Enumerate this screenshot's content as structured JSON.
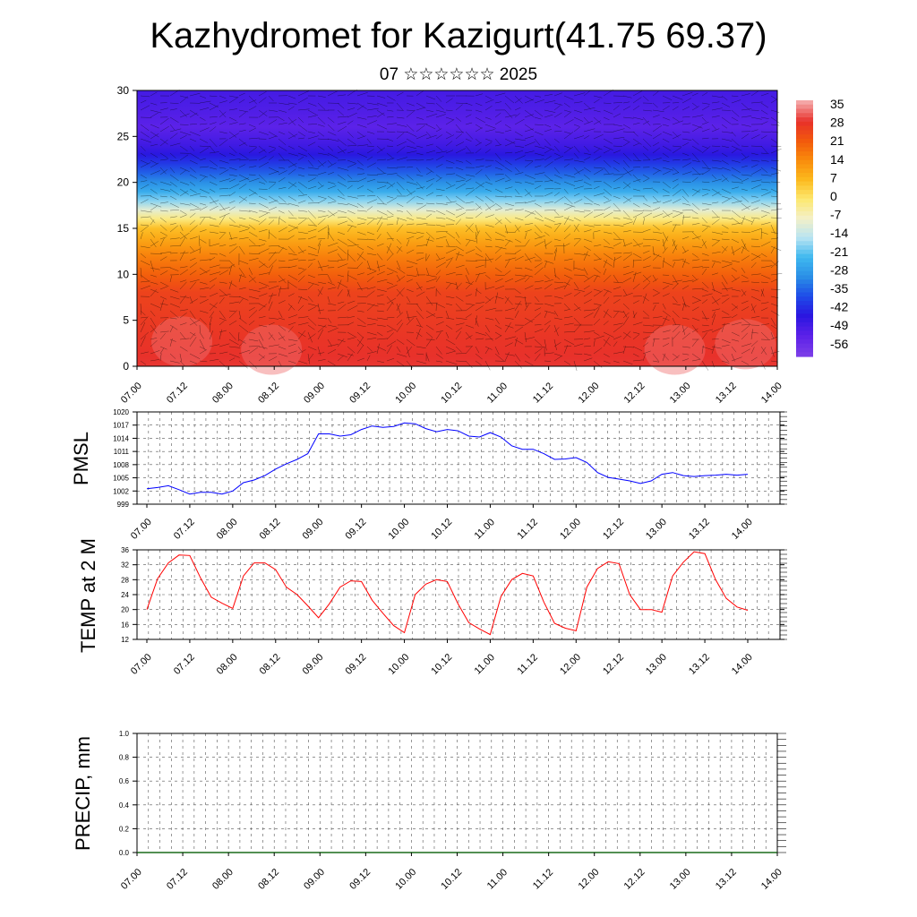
{
  "header": {
    "title": "Kazhydromet for Kazigurt(41.75 69.37)",
    "subtitle": "07 ☆☆☆☆☆☆ 2025"
  },
  "time_ticks": [
    "07.00",
    "07.12",
    "08.00",
    "08.12",
    "09.00",
    "09.12",
    "10.00",
    "10.12",
    "11.00",
    "11.12",
    "12.00",
    "12.12",
    "13.00",
    "13.12",
    "14.00"
  ],
  "chart_data": [
    {
      "type": "heatmap",
      "name": "temperature-wind-cross-section",
      "x": [
        "07.00",
        "07.12",
        "08.00",
        "08.12",
        "09.00",
        "09.12",
        "10.00",
        "10.12",
        "11.00",
        "11.12",
        "12.00",
        "12.12",
        "13.00",
        "13.12",
        "14.00"
      ],
      "ylim": [
        0,
        30
      ],
      "yticks": [
        0,
        5,
        10,
        15,
        20,
        25,
        30
      ],
      "colorbar": {
        "labels": [
          "35",
          "28",
          "21",
          "14",
          "7",
          "0",
          "-7",
          "-14",
          "-21",
          "-28",
          "-35",
          "-42",
          "-49",
          "-56"
        ],
        "colors": [
          "#f4a5a5",
          "#e8302a",
          "#f25a0c",
          "#f98c0c",
          "#fcba1e",
          "#fde870",
          "#f3f0c8",
          "#b8e4f2",
          "#3fb8ef",
          "#2a8fe6",
          "#1e4ce8",
          "#2a16e0",
          "#5a20e8",
          "#7a3ce8"
        ]
      },
      "profile": [
        {
          "y": 0,
          "t": 28
        },
        {
          "y": 8,
          "t": 24
        },
        {
          "y": 12,
          "t": 14
        },
        {
          "y": 15,
          "t": 4
        },
        {
          "y": 16.5,
          "t": -8
        },
        {
          "y": 18.5,
          "t": -25
        },
        {
          "y": 21,
          "t": -38
        },
        {
          "y": 23.5,
          "t": -50
        },
        {
          "y": 26,
          "t": -56
        },
        {
          "y": 27.5,
          "t": -54
        },
        {
          "y": 30,
          "t": -52
        }
      ],
      "xlabel": "",
      "ylabel": "",
      "grid": false
    },
    {
      "type": "line",
      "name": "pmsl",
      "ylabel": "PMSL",
      "ylim": [
        999,
        1020
      ],
      "yticks": [
        999,
        1002,
        1005,
        1008,
        1011,
        1014,
        1017,
        1020
      ],
      "color": "#0000ff",
      "x": [
        "07.00",
        "07.03",
        "07.06",
        "07.09",
        "07.12",
        "07.15",
        "07.18",
        "07.21",
        "08.00",
        "08.03",
        "08.06",
        "08.09",
        "08.12",
        "08.15",
        "08.18",
        "08.21",
        "09.00",
        "09.03",
        "09.06",
        "09.09",
        "09.12",
        "09.15",
        "09.18",
        "09.21",
        "10.00",
        "10.03",
        "10.06",
        "10.09",
        "10.12",
        "10.15",
        "10.18",
        "10.21",
        "11.00",
        "11.03",
        "11.06",
        "11.09",
        "11.12",
        "11.15",
        "11.18",
        "11.21",
        "12.00",
        "12.03",
        "12.06",
        "12.09",
        "12.12",
        "12.15",
        "12.18",
        "12.21",
        "13.00",
        "13.03",
        "13.06",
        "13.09",
        "13.12",
        "13.15",
        "13.18",
        "13.21",
        "14.00"
      ],
      "values": [
        1002.5,
        1002.8,
        1003.2,
        1002.3,
        1001.3,
        1001.7,
        1001.7,
        1001.3,
        1002.0,
        1003.9,
        1004.5,
        1005.5,
        1007.0,
        1008.2,
        1009.2,
        1010.5,
        1015.0,
        1015.0,
        1014.5,
        1014.8,
        1016.0,
        1016.8,
        1016.5,
        1016.7,
        1017.5,
        1017.3,
        1016.2,
        1015.5,
        1016.0,
        1015.7,
        1014.5,
        1014.3,
        1015.3,
        1014.3,
        1012.3,
        1011.5,
        1011.5,
        1010.5,
        1009.2,
        1009.3,
        1009.6,
        1008.5,
        1006.2,
        1005.1,
        1004.7,
        1004.3,
        1003.7,
        1004.3,
        1005.8,
        1006.2,
        1005.5,
        1005.3,
        1005.5,
        1005.6,
        1005.8,
        1005.6,
        1005.8
      ],
      "grid": true
    },
    {
      "type": "line",
      "name": "temp-2m",
      "ylabel": "TEMP at 2 M",
      "ylim": [
        12,
        36
      ],
      "yticks": [
        12,
        16,
        20,
        24,
        28,
        32,
        36
      ],
      "color": "#ff0000",
      "x": [
        "07.00",
        "07.03",
        "07.06",
        "07.09",
        "07.12",
        "07.15",
        "07.18",
        "07.21",
        "08.00",
        "08.03",
        "08.06",
        "08.09",
        "08.12",
        "08.15",
        "08.18",
        "08.21",
        "09.00",
        "09.03",
        "09.06",
        "09.09",
        "09.12",
        "09.15",
        "09.18",
        "09.21",
        "10.00",
        "10.03",
        "10.06",
        "10.09",
        "10.12",
        "10.15",
        "10.18",
        "10.21",
        "11.00",
        "11.03",
        "11.06",
        "11.09",
        "11.12",
        "11.15",
        "11.18",
        "11.21",
        "12.00",
        "12.03",
        "12.06",
        "12.09",
        "12.12",
        "12.15",
        "12.18",
        "12.21",
        "13.00",
        "13.03",
        "13.06",
        "13.09",
        "13.12",
        "13.15",
        "13.18",
        "13.21",
        "14.00"
      ],
      "values": [
        20.0,
        28.3,
        32.5,
        34.6,
        34.5,
        28.5,
        23.3,
        21.7,
        20.3,
        29.0,
        32.5,
        32.5,
        30.7,
        26.0,
        24.0,
        21.0,
        17.8,
        21.5,
        26.0,
        27.7,
        27.5,
        22.5,
        19.0,
        15.7,
        13.8,
        24.0,
        26.8,
        28.0,
        27.5,
        21.5,
        16.5,
        14.8,
        13.3,
        23.5,
        28.0,
        29.7,
        29.0,
        22.0,
        16.3,
        15.0,
        14.3,
        26.0,
        31.0,
        32.8,
        32.3,
        24.0,
        20.0,
        20.0,
        19.3,
        29.0,
        32.7,
        35.5,
        35.0,
        28.0,
        23.0,
        20.7,
        19.8
      ],
      "grid": true
    },
    {
      "type": "bar",
      "name": "precip",
      "ylabel": "PRECIP, mm",
      "ylim": [
        0.0,
        1.0
      ],
      "yticks": [
        "0.0",
        "0.2",
        "0.4",
        "0.6",
        "0.8",
        "1.0"
      ],
      "x": [
        "07.00",
        "07.12",
        "08.00",
        "08.12",
        "09.00",
        "09.12",
        "10.00",
        "10.12",
        "11.00",
        "11.12",
        "12.00",
        "12.12",
        "13.00",
        "13.12",
        "14.00"
      ],
      "values": [
        0,
        0,
        0,
        0,
        0,
        0,
        0,
        0,
        0,
        0,
        0,
        0,
        0,
        0,
        0
      ],
      "grid": true
    }
  ]
}
